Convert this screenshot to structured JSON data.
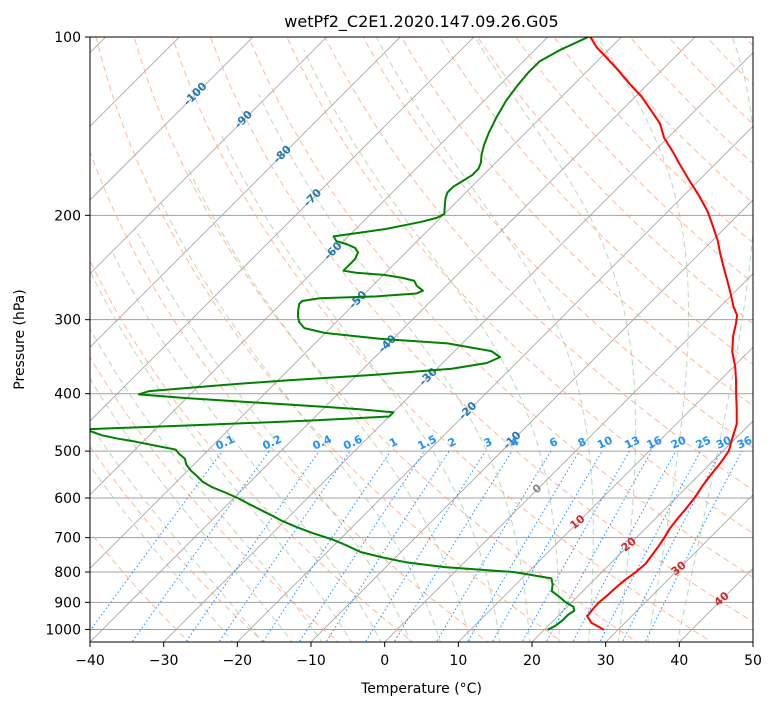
{
  "chart_data": {
    "type": "line",
    "title": "wetPf2_C2E1.2020.147.09.26.G05",
    "xlabel": "Temperature (°C)",
    "ylabel": "Pressure (hPa)",
    "xlim": [
      -40,
      50
    ],
    "ylim": [
      1050,
      100
    ],
    "y_scale": "log",
    "grid": true,
    "x_ticks": [
      "−40",
      "−30",
      "−20",
      "−10",
      "0",
      "10",
      "20",
      "30",
      "40",
      "50"
    ],
    "x_tick_values": [
      -40,
      -30,
      -20,
      -10,
      0,
      10,
      20,
      30,
      40,
      50
    ],
    "y_ticks": [
      "100",
      "200",
      "300",
      "400",
      "500",
      "600",
      "700",
      "800",
      "900",
      "1000"
    ],
    "y_tick_values": [
      100,
      200,
      300,
      400,
      500,
      600,
      700,
      800,
      900,
      1000
    ],
    "colors": {
      "temperature": "#ff0000",
      "dewpoint": "#008000",
      "isotherm_grid": "#a0a0a0",
      "dry_adiabat": "#ffa07a",
      "moist_adiabat": "#8fbc8f",
      "mixing_ratio": "#1e90ff",
      "isotherm_label": "#1f77b4",
      "dry_label": "#d62728",
      "dry_zero_label": "#888888"
    },
    "series": [
      {
        "key": "temperature",
        "points": [
          [
            28.0,
            1000
          ],
          [
            25.5,
            975
          ],
          [
            24.0,
            950
          ],
          [
            23.8,
            925
          ],
          [
            23.7,
            900
          ],
          [
            23.9,
            875
          ],
          [
            24.0,
            850
          ],
          [
            24.2,
            825
          ],
          [
            24.6,
            800
          ],
          [
            24.8,
            775
          ],
          [
            24.5,
            750
          ],
          [
            24.2,
            725
          ],
          [
            23.8,
            700
          ],
          [
            23.3,
            675
          ],
          [
            23.0,
            650
          ],
          [
            22.8,
            625
          ],
          [
            22.5,
            600
          ],
          [
            22.0,
            575
          ],
          [
            21.6,
            550
          ],
          [
            21.3,
            525
          ],
          [
            20.8,
            500
          ],
          [
            19.5,
            475
          ],
          [
            18.2,
            450
          ],
          [
            16.2,
            425
          ],
          [
            14.0,
            400
          ],
          [
            12.2,
            380
          ],
          [
            10.2,
            360
          ],
          [
            7.8,
            340
          ],
          [
            5.8,
            320
          ],
          [
            4.5,
            305
          ],
          [
            3.5,
            295
          ],
          [
            1.8,
            285
          ],
          [
            -0.5,
            270
          ],
          [
            -2.5,
            258
          ],
          [
            -4.8,
            245
          ],
          [
            -7.0,
            233
          ],
          [
            -9.2,
            221
          ],
          [
            -11.8,
            209
          ],
          [
            -14.6,
            197
          ],
          [
            -18.0,
            185
          ],
          [
            -21.5,
            174
          ],
          [
            -24.8,
            164
          ],
          [
            -27.5,
            156
          ],
          [
            -30.5,
            148
          ],
          [
            -33.0,
            140
          ],
          [
            -36.0,
            133
          ],
          [
            -39.2,
            126
          ],
          [
            -42.5,
            120
          ],
          [
            -45.8,
            114
          ],
          [
            -48.8,
            109
          ],
          [
            -52.0,
            104
          ],
          [
            -54.2,
            100
          ]
        ]
      },
      {
        "key": "dewpoint",
        "points": [
          [
            20.5,
            1000
          ],
          [
            21.0,
            985
          ],
          [
            21.2,
            965
          ],
          [
            21.2,
            945
          ],
          [
            21.5,
            930
          ],
          [
            20.8,
            915
          ],
          [
            19.2,
            900
          ],
          [
            17.5,
            880
          ],
          [
            15.8,
            862
          ],
          [
            15.0,
            840
          ],
          [
            14.0,
            820
          ],
          [
            8.0,
            800
          ],
          [
            -2.0,
            785
          ],
          [
            -8.0,
            770
          ],
          [
            -12.0,
            755
          ],
          [
            -15.5,
            740
          ],
          [
            -18.5,
            720
          ],
          [
            -21.0,
            705
          ],
          [
            -24.5,
            688
          ],
          [
            -27.5,
            672
          ],
          [
            -30.5,
            655
          ],
          [
            -32.5,
            642
          ],
          [
            -34.5,
            630
          ],
          [
            -37.0,
            615
          ],
          [
            -39.5,
            600
          ],
          [
            -42.0,
            587
          ],
          [
            -44.5,
            575
          ],
          [
            -46.5,
            563
          ],
          [
            -48.0,
            551
          ],
          [
            -49.5,
            540
          ],
          [
            -51.0,
            527
          ],
          [
            -52.0,
            515
          ],
          [
            -53.5,
            505
          ],
          [
            -54.5,
            497
          ],
          [
            -58.0,
            489
          ],
          [
            -61.0,
            482
          ],
          [
            -64.0,
            476
          ],
          [
            -66.5,
            470
          ],
          [
            -68.5,
            463
          ],
          [
            -69.0,
            459
          ],
          [
            -55.0,
            452
          ],
          [
            -40.0,
            444
          ],
          [
            -30.0,
            437
          ],
          [
            -30.0,
            430
          ],
          [
            -35.0,
            425
          ],
          [
            -40.0,
            421
          ],
          [
            -50.0,
            414
          ],
          [
            -60.0,
            407
          ],
          [
            -67.0,
            401
          ],
          [
            -66.0,
            396
          ],
          [
            -60.0,
            390
          ],
          [
            -55.0,
            385
          ],
          [
            -49.0,
            380
          ],
          [
            -38.0,
            372
          ],
          [
            -28.0,
            363
          ],
          [
            -24.0,
            355
          ],
          [
            -23.0,
            347
          ],
          [
            -25.0,
            339
          ],
          [
            -32.0,
            329
          ],
          [
            -42.0,
            323
          ],
          [
            -50.0,
            316
          ],
          [
            -53.5,
            310
          ],
          [
            -55.0,
            303
          ],
          [
            -56.0,
            296
          ],
          [
            -56.8,
            289
          ],
          [
            -57.5,
            282
          ],
          [
            -57.5,
            279
          ],
          [
            -55.5,
            276
          ],
          [
            -48.0,
            274
          ],
          [
            -43.0,
            271
          ],
          [
            -42.5,
            268
          ],
          [
            -44.0,
            263
          ],
          [
            -45.0,
            258
          ],
          [
            -47.0,
            255
          ],
          [
            -50.0,
            252
          ],
          [
            -54.0,
            250
          ],
          [
            -56.0,
            248
          ],
          [
            -56.0,
            243
          ],
          [
            -56.0,
            237
          ],
          [
            -56.5,
            231
          ],
          [
            -57.5,
            227
          ],
          [
            -59.0,
            224
          ],
          [
            -61.0,
            221
          ],
          [
            -62.0,
            217
          ],
          [
            -59.0,
            214
          ],
          [
            -56.0,
            211
          ],
          [
            -54.0,
            208
          ],
          [
            -52.0,
            205
          ],
          [
            -50.5,
            202
          ],
          [
            -50.0,
            199
          ],
          [
            -50.5,
            196
          ],
          [
            -51.0,
            193
          ],
          [
            -51.5,
            190
          ],
          [
            -52.0,
            187
          ],
          [
            -52.5,
            183
          ],
          [
            -52.5,
            179
          ],
          [
            -52.0,
            175
          ],
          [
            -51.5,
            171
          ],
          [
            -51.5,
            167
          ],
          [
            -52.0,
            163
          ],
          [
            -53.0,
            158
          ],
          [
            -54.0,
            152
          ],
          [
            -55.0,
            145
          ],
          [
            -56.0,
            137
          ],
          [
            -57.0,
            128
          ],
          [
            -57.5,
            121
          ],
          [
            -57.8,
            115
          ],
          [
            -57.8,
            110
          ],
          [
            -56.5,
            105
          ],
          [
            -54.5,
            100
          ]
        ]
      }
    ],
    "isotherm_labels": [
      "-100",
      "-90",
      "-80",
      "-70",
      "-60",
      "-50",
      "-40",
      "-30",
      "-20",
      "-10"
    ],
    "isotherm_label_values": [
      -100,
      -90,
      -80,
      -70,
      -60,
      -50,
      -40,
      -30,
      -20,
      -10
    ],
    "mixing_ratio_labels": [
      "0.1",
      "0.2",
      "0.4",
      "0.6",
      "1",
      "1.5",
      "2",
      "3",
      "4",
      "6",
      "8",
      "10",
      "13",
      "16",
      "20",
      "25",
      "30",
      "36"
    ],
    "mixing_ratio_values": [
      0.1,
      0.2,
      0.4,
      0.6,
      1,
      1.5,
      2,
      3,
      4,
      6,
      8,
      10,
      13,
      16,
      20,
      25,
      30,
      36
    ],
    "dry_adiabat_labels": [
      "0",
      "10",
      "20",
      "30",
      "40"
    ],
    "dry_adiabat_label_values": [
      0,
      10,
      20,
      30,
      40
    ]
  }
}
